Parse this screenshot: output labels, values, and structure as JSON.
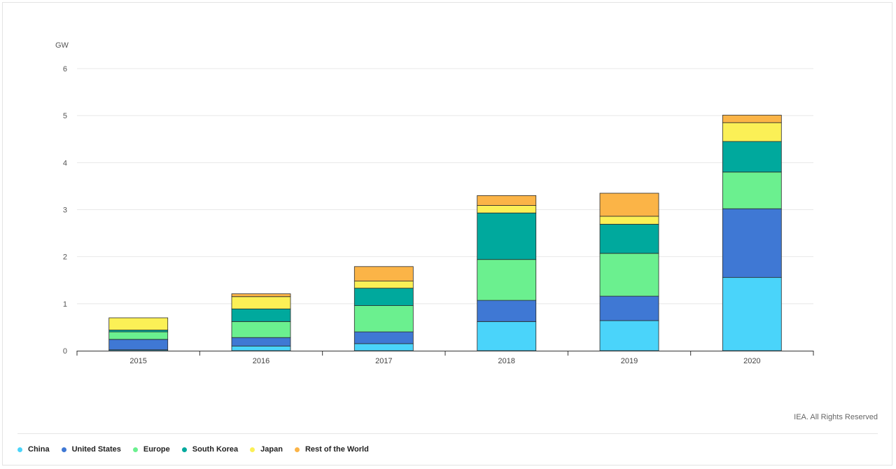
{
  "chart_data": {
    "type": "bar",
    "stacked": true,
    "unit_label": "GW",
    "categories": [
      "2015",
      "2016",
      "2017",
      "2018",
      "2019",
      "2020"
    ],
    "ylim": [
      0,
      6
    ],
    "yticks": [
      0,
      1,
      2,
      3,
      4,
      5,
      6
    ],
    "grid": true,
    "legend_position": "bottom",
    "series": [
      {
        "name": "China",
        "color": "#4ad4fa",
        "values": [
          0.02,
          0.1,
          0.15,
          0.62,
          0.64,
          1.56
        ]
      },
      {
        "name": "United States",
        "color": "#3f78d4",
        "values": [
          0.22,
          0.18,
          0.25,
          0.45,
          0.52,
          1.46
        ]
      },
      {
        "name": "Europe",
        "color": "#6bf08f",
        "values": [
          0.16,
          0.34,
          0.56,
          0.87,
          0.91,
          0.78
        ]
      },
      {
        "name": "South Korea",
        "color": "#00a99d",
        "values": [
          0.04,
          0.27,
          0.37,
          0.99,
          0.62,
          0.65
        ]
      },
      {
        "name": "Japan",
        "color": "#fbf056",
        "values": [
          0.26,
          0.26,
          0.15,
          0.16,
          0.17,
          0.4
        ]
      },
      {
        "name": "Rest of the World",
        "color": "#fbb447",
        "values": [
          0.0,
          0.06,
          0.31,
          0.21,
          0.49,
          0.16
        ]
      }
    ]
  },
  "copyright": "IEA. All Rights Reserved"
}
